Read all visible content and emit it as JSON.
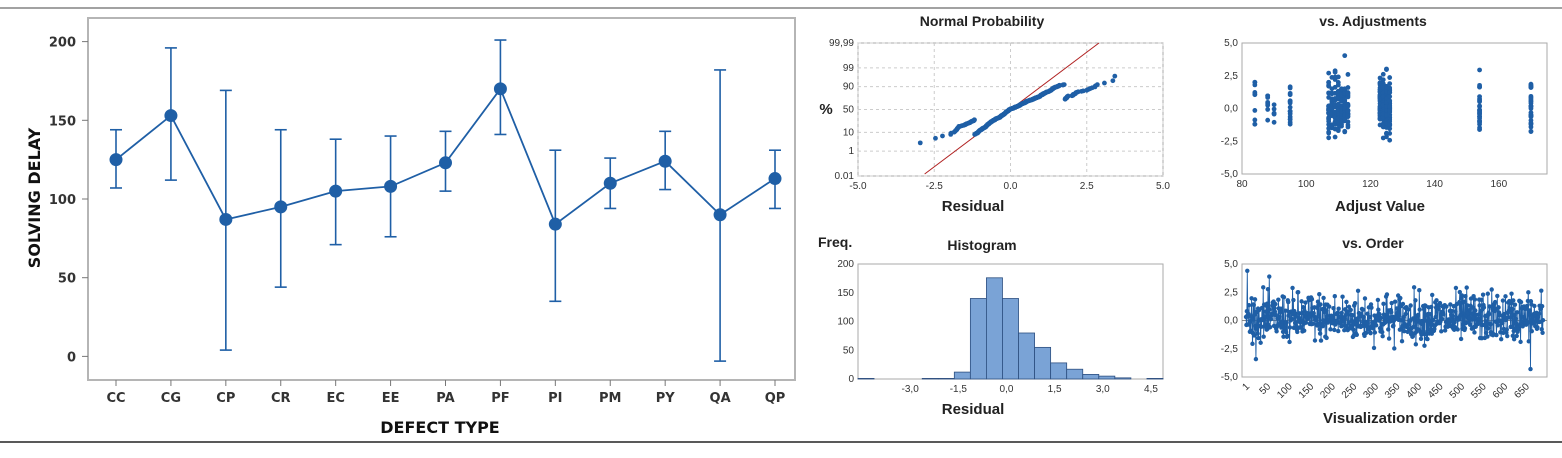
{
  "colors": {
    "series": "#1f5fa6",
    "bar": "#7aa3d6",
    "refline": "#b02020",
    "grid": "#cccccc",
    "frame": "#b5b5b5"
  },
  "chart_data": [
    {
      "type": "line",
      "name": "interval-plot",
      "xlabel": "DEFECT TYPE",
      "ylabel": "SOLVING DELAY",
      "ylim": [
        -15,
        215
      ],
      "yticks": [
        0,
        50,
        100,
        150,
        200
      ],
      "categories": [
        "CC",
        "CG",
        "CP",
        "CR",
        "EC",
        "EE",
        "PA",
        "PF",
        "PI",
        "PM",
        "PY",
        "QA",
        "QP"
      ],
      "values": [
        125,
        153,
        87,
        95,
        105,
        108,
        123,
        170,
        84,
        110,
        124,
        90,
        113
      ],
      "lower": [
        107,
        112,
        4,
        44,
        71,
        76,
        105,
        141,
        35,
        94,
        106,
        -3,
        94
      ],
      "upper": [
        144,
        196,
        169,
        144,
        138,
        140,
        143,
        201,
        131,
        126,
        143,
        182,
        131
      ]
    },
    {
      "type": "scatter",
      "name": "normal-probability",
      "title": "Normal Probability",
      "xlabel": "Residual",
      "ylabel": "%",
      "xlim": [
        -5,
        5
      ],
      "xticks": [
        -5.0,
        -2.5,
        0.0,
        2.5,
        5.0
      ],
      "xtick_labels": [
        "-5.0",
        "-2.5",
        "0.0",
        "2.5",
        "5.0"
      ],
      "ytick_labels": [
        "99,99",
        "99",
        "90",
        "50",
        "10",
        "1",
        "0.01"
      ]
    },
    {
      "type": "scatter",
      "name": "vs-adjustments",
      "title": "vs. Adjustments",
      "xlabel": "Adjust Value",
      "xlim": [
        80,
        175
      ],
      "ylim": [
        -5,
        5
      ],
      "xticks": [
        80,
        100,
        120,
        140,
        160
      ],
      "yticks": [
        5,
        2.5,
        0,
        -2.5,
        -5
      ],
      "ytick_labels": [
        "5,0",
        "2,5",
        "0,0",
        "-2,5",
        "-5,0"
      ],
      "fitted_values": [
        84,
        88,
        90,
        95,
        107,
        108,
        109,
        110,
        111,
        112,
        113,
        123,
        124,
        125,
        126,
        154,
        170
      ]
    },
    {
      "type": "bar",
      "name": "histogram",
      "title": "Histogram",
      "xlabel": "Residual",
      "ylabel": "Freq.",
      "ylim": [
        0,
        200
      ],
      "yticks": [
        0,
        50,
        100,
        150,
        200
      ],
      "xlim": [
        -4.5,
        5.0
      ],
      "xtick_labels": [
        "-3,0",
        "-1,5",
        "0,0",
        "1,5",
        "3,0",
        "4,5"
      ],
      "bin_width": 0.5,
      "bin_starts": [
        -4.5,
        -4.0,
        -3.5,
        -3.0,
        -2.5,
        -2.0,
        -1.5,
        -1.0,
        -0.5,
        0.0,
        0.5,
        1.0,
        1.5,
        2.0,
        2.5,
        3.0,
        3.5,
        4.0,
        4.5
      ],
      "values": [
        1,
        0,
        0,
        0,
        1,
        1,
        12,
        140,
        176,
        140,
        80,
        55,
        28,
        17,
        8,
        5,
        2,
        0,
        1
      ]
    },
    {
      "type": "line",
      "name": "vs-order",
      "title": "vs. Order",
      "xlabel": "Visualization order",
      "ylim": [
        -5,
        5
      ],
      "yticks": [
        5,
        2.5,
        0,
        -2.5,
        -5
      ],
      "ytick_labels": [
        "5,0",
        "2,5",
        "0,0",
        "-2,5",
        "-5,0"
      ],
      "xtick_labels": [
        "1",
        "50",
        "100",
        "150",
        "200",
        "250",
        "300",
        "350",
        "400",
        "450",
        "500",
        "550",
        "600",
        "650"
      ]
    }
  ]
}
